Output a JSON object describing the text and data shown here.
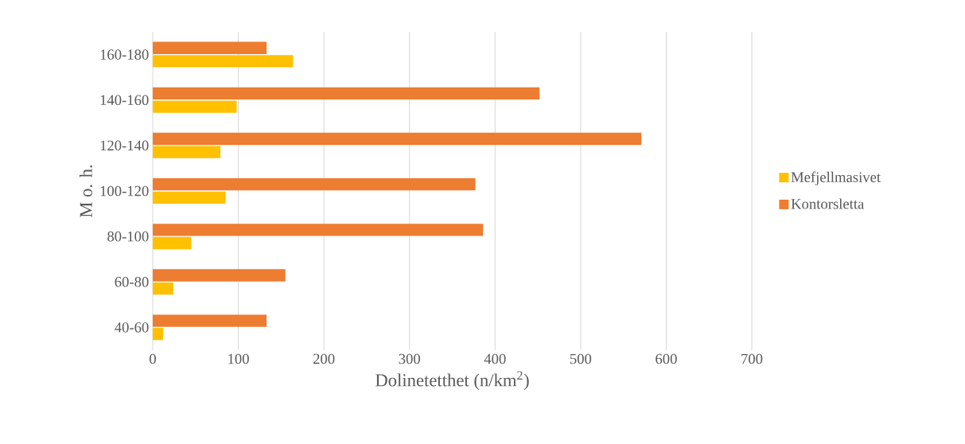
{
  "chart_data": {
    "type": "bar",
    "orientation": "horizontal",
    "xlabel": "Dolinetetthet (n/km$^{2}$)",
    "ylabel": "M o. h.",
    "categories": [
      "160-180",
      "140-160",
      "120-140",
      "100-120",
      "80-100",
      "60-80",
      "40-60"
    ],
    "series": [
      {
        "name": "Mefjellmasivet",
        "color": "#ffc000",
        "values": [
          164,
          98,
          79,
          85,
          45,
          24,
          12
        ]
      },
      {
        "name": "Kontorsletta",
        "color": "#ed7d31",
        "values": [
          133,
          452,
          571,
          377,
          386,
          155,
          133
        ]
      }
    ],
    "xlim": [
      0,
      700
    ],
    "xticks": [
      0,
      100,
      200,
      300,
      400,
      500,
      600,
      700
    ],
    "grid": "x",
    "legend": "right"
  }
}
